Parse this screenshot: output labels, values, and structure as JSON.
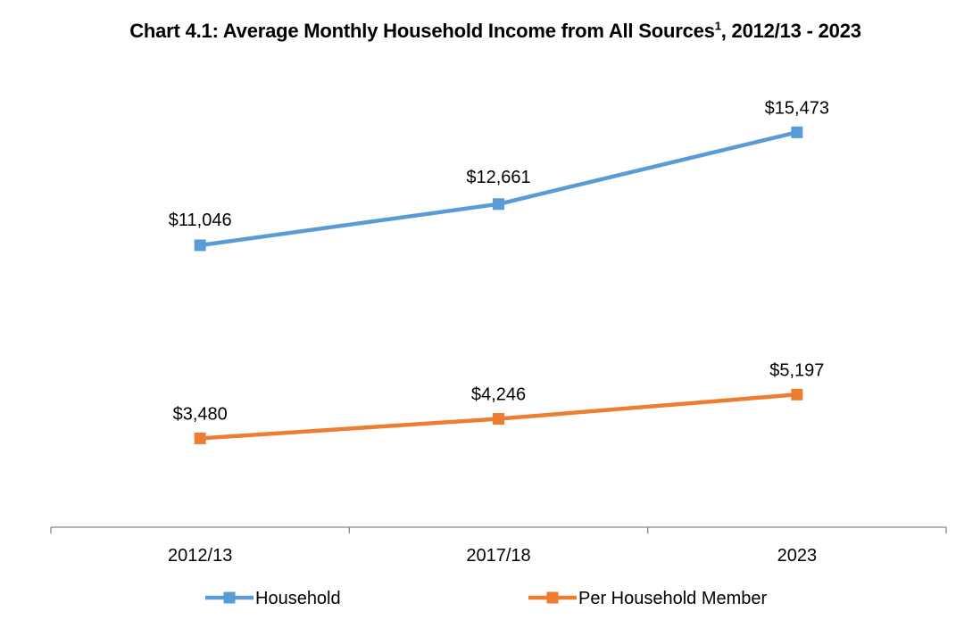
{
  "chart_data": {
    "type": "line",
    "title": "Chart 4.1: Average Monthly Household Income from All Sources",
    "title_superscript": "1",
    "title_suffix": ", 2012/13 - 2023",
    "categories": [
      "2012/13",
      "2017/18",
      "2023"
    ],
    "series": [
      {
        "name": "Household",
        "values": [
          11046,
          12661,
          15473
        ],
        "labels": [
          "$11,046",
          "$12,661",
          "$15,473"
        ],
        "color": "#5B9BD5"
      },
      {
        "name": "Per Household Member",
        "values": [
          3480,
          4246,
          5197
        ],
        "labels": [
          "$3,480",
          "$4,246",
          "$5,197"
        ],
        "color": "#ED7D31"
      }
    ],
    "ylim": [
      0,
      18000
    ],
    "grid": false,
    "y_axis_visible": false,
    "legend_position": "bottom"
  }
}
